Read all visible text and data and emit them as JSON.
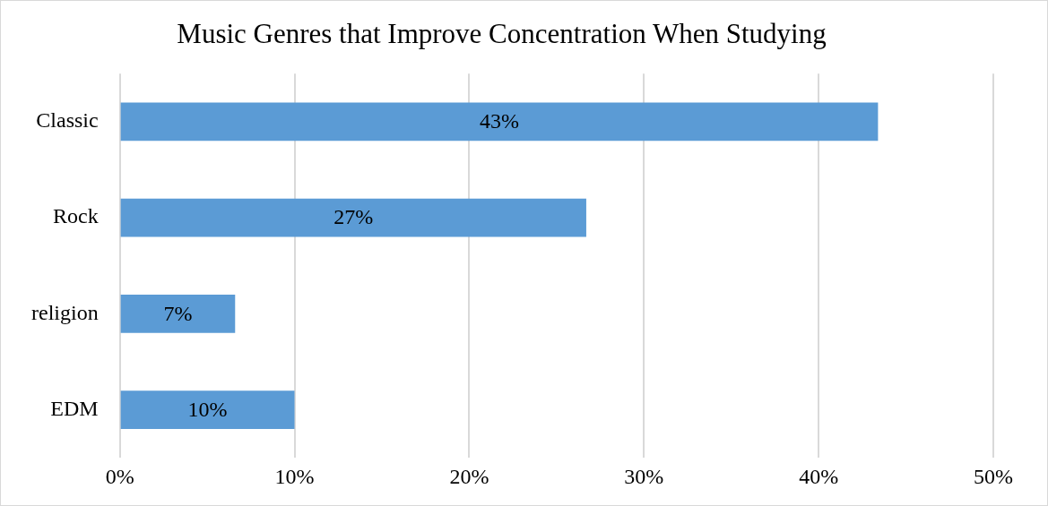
{
  "chart_data": {
    "type": "bar",
    "orientation": "horizontal",
    "title": "Music Genres that Improve Concentration When Studying",
    "categories": [
      "Classic",
      "Rock",
      "religion",
      "EDM"
    ],
    "values": [
      43.4,
      26.7,
      6.6,
      10
    ],
    "value_labels": [
      "43%",
      "27%",
      "7%",
      "10%"
    ],
    "color": "#5b9bd5",
    "xlim": [
      0,
      50
    ],
    "xticks": [
      {
        "value": 0,
        "label": "0%"
      },
      {
        "value": 10,
        "label": "10%"
      },
      {
        "value": 20,
        "label": "20%"
      },
      {
        "value": 30,
        "label": "30%"
      },
      {
        "value": 40,
        "label": "40%"
      },
      {
        "value": 50,
        "label": "50%"
      }
    ],
    "grid": "x",
    "legend": false
  }
}
